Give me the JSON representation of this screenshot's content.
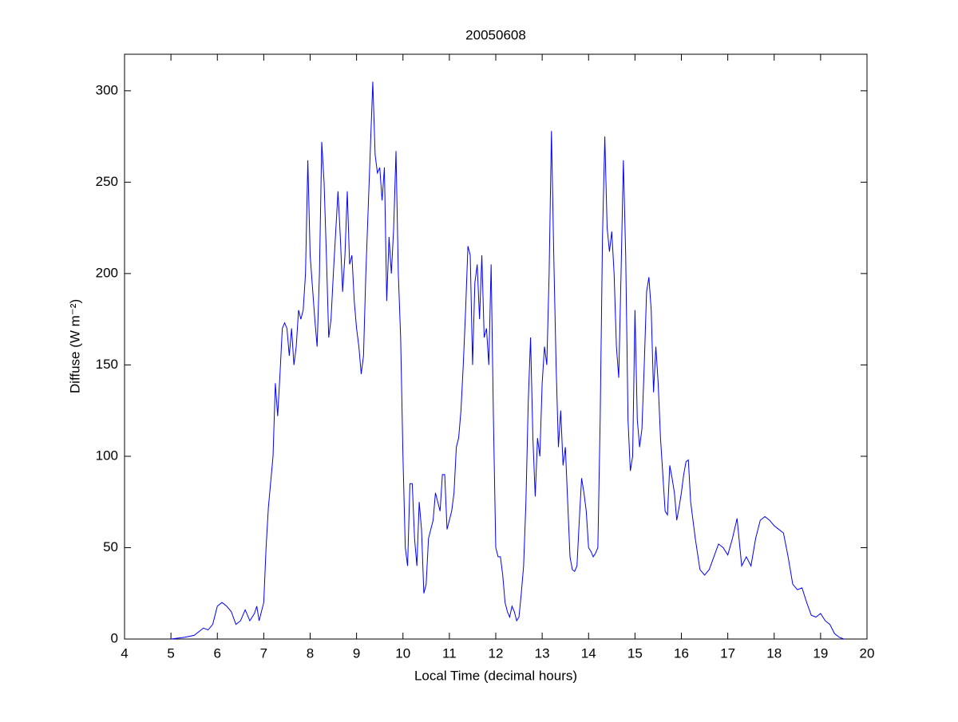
{
  "chart_data": {
    "type": "line",
    "title": "20050608",
    "xlabel": "Local Time (decimal hours)",
    "ylabel": "Diffuse (W m⁻²)",
    "x": [
      5.0,
      5.3,
      5.5,
      5.7,
      5.8,
      5.9,
      6.0,
      6.1,
      6.2,
      6.3,
      6.4,
      6.5,
      6.6,
      6.7,
      6.8,
      6.85,
      6.9,
      7.0,
      7.05,
      7.1,
      7.2,
      7.25,
      7.3,
      7.35,
      7.4,
      7.45,
      7.5,
      7.55,
      7.6,
      7.65,
      7.7,
      7.75,
      7.8,
      7.85,
      7.9,
      7.95,
      8.0,
      8.1,
      8.15,
      8.2,
      8.25,
      8.3,
      8.35,
      8.4,
      8.45,
      8.5,
      8.6,
      8.65,
      8.7,
      8.75,
      8.8,
      8.85,
      8.9,
      8.95,
      9.0,
      9.05,
      9.1,
      9.15,
      9.2,
      9.3,
      9.35,
      9.4,
      9.45,
      9.5,
      9.55,
      9.6,
      9.65,
      9.7,
      9.75,
      9.8,
      9.85,
      9.9,
      9.95,
      10.0,
      10.05,
      10.1,
      10.15,
      10.2,
      10.25,
      10.3,
      10.35,
      10.4,
      10.45,
      10.5,
      10.55,
      10.6,
      10.65,
      10.7,
      10.75,
      10.8,
      10.85,
      10.9,
      10.95,
      11.0,
      11.05,
      11.1,
      11.15,
      11.2,
      11.25,
      11.3,
      11.35,
      11.4,
      11.45,
      11.5,
      11.55,
      11.6,
      11.65,
      11.7,
      11.75,
      11.8,
      11.85,
      11.9,
      11.95,
      12.0,
      12.05,
      12.1,
      12.15,
      12.2,
      12.25,
      12.3,
      12.35,
      12.4,
      12.45,
      12.5,
      12.55,
      12.6,
      12.65,
      12.7,
      12.75,
      12.8,
      12.85,
      12.9,
      12.95,
      13.0,
      13.05,
      13.1,
      13.15,
      13.2,
      13.25,
      13.3,
      13.35,
      13.4,
      13.45,
      13.5,
      13.55,
      13.6,
      13.65,
      13.7,
      13.75,
      13.8,
      13.85,
      13.9,
      13.95,
      14.0,
      14.05,
      14.1,
      14.15,
      14.2,
      14.25,
      14.3,
      14.35,
      14.4,
      14.45,
      14.5,
      14.55,
      14.6,
      14.65,
      14.7,
      14.75,
      14.8,
      14.85,
      14.9,
      14.95,
      15.0,
      15.05,
      15.1,
      15.15,
      15.2,
      15.25,
      15.3,
      15.35,
      15.4,
      15.45,
      15.5,
      15.55,
      15.6,
      15.65,
      15.7,
      15.75,
      15.8,
      15.85,
      15.9,
      15.95,
      16.0,
      16.05,
      16.1,
      16.15,
      16.2,
      16.3,
      16.4,
      16.5,
      16.6,
      16.7,
      16.8,
      16.9,
      17.0,
      17.1,
      17.2,
      17.3,
      17.4,
      17.5,
      17.6,
      17.7,
      17.8,
      17.9,
      18.0,
      18.1,
      18.2,
      18.3,
      18.4,
      18.5,
      18.6,
      18.7,
      18.8,
      18.9,
      19.0,
      19.1,
      19.2,
      19.3,
      19.4,
      19.5
    ],
    "series": [
      {
        "color": "#0000ff",
        "values": [
          0,
          1,
          2,
          6,
          5,
          8,
          18,
          20,
          18,
          15,
          8,
          10,
          16,
          10,
          14,
          18,
          10,
          20,
          50,
          72,
          100,
          140,
          122,
          145,
          170,
          173,
          170,
          155,
          170,
          150,
          160,
          180,
          175,
          180,
          200,
          262,
          210,
          175,
          160,
          200,
          272,
          250,
          210,
          165,
          175,
          200,
          245,
          220,
          190,
          210,
          245,
          205,
          210,
          185,
          170,
          160,
          145,
          155,
          200,
          270,
          305,
          265,
          255,
          258,
          240,
          258,
          185,
          220,
          200,
          225,
          267,
          200,
          165,
          100,
          50,
          40,
          85,
          85,
          55,
          40,
          75,
          60,
          25,
          30,
          55,
          60,
          65,
          80,
          75,
          70,
          90,
          90,
          60,
          65,
          70,
          80,
          105,
          110,
          125,
          150,
          180,
          215,
          210,
          150,
          195,
          205,
          175,
          210,
          165,
          170,
          150,
          205,
          120,
          50,
          45,
          45,
          35,
          20,
          15,
          12,
          18,
          15,
          10,
          12,
          25,
          40,
          75,
          130,
          165,
          110,
          78,
          110,
          100,
          140,
          160,
          150,
          200,
          278,
          210,
          150,
          105,
          125,
          95,
          105,
          75,
          45,
          38,
          37,
          40,
          65,
          88,
          80,
          70,
          50,
          48,
          45,
          47,
          50,
          120,
          220,
          275,
          225,
          212,
          223,
          200,
          160,
          143,
          200,
          262,
          210,
          120,
          92,
          100,
          180,
          120,
          105,
          115,
          150,
          190,
          198,
          180,
          135,
          160,
          140,
          110,
          90,
          70,
          68,
          95,
          88,
          80,
          65,
          72,
          80,
          90,
          97,
          98,
          75,
          55,
          38,
          35,
          38,
          45,
          52,
          50,
          46,
          55,
          66,
          40,
          45,
          40,
          55,
          65,
          67,
          65,
          62,
          60,
          58,
          45,
          30,
          27,
          28,
          20,
          13,
          12,
          14,
          10,
          8,
          3,
          1,
          0
        ]
      }
    ],
    "xlim": [
      4,
      20
    ],
    "xticks": [
      4,
      5,
      6,
      7,
      8,
      9,
      10,
      11,
      12,
      13,
      14,
      15,
      16,
      17,
      18,
      19,
      20
    ],
    "ylim": [
      0,
      320
    ],
    "yticks": [
      0,
      50,
      100,
      150,
      200,
      250,
      300
    ],
    "grid": false
  }
}
